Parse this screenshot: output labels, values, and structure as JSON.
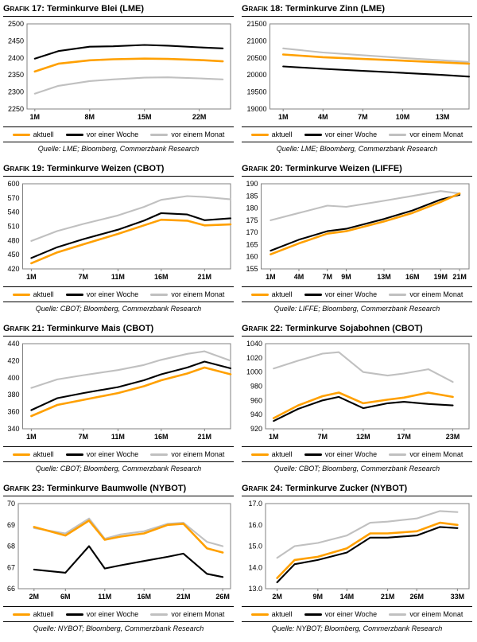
{
  "grid": false,
  "legend_position": "bottom",
  "chart_data": [
    {
      "title_prefix": "Grafik 17:",
      "title": "Terminkurve Blei (LME)",
      "source": "Quelle: LME; Bloomberg, Commerzbank Research",
      "type": "line",
      "xlim": [
        0,
        26
      ],
      "ylim": [
        2250,
        2500
      ],
      "yticks": [
        2250,
        2300,
        2350,
        2400,
        2450,
        2500
      ],
      "ytick_decimals": 0,
      "xticks": [
        {
          "v": 1,
          "label": "1M"
        },
        {
          "v": 8,
          "label": "8M"
        },
        {
          "v": 15,
          "label": "15M"
        },
        {
          "v": 22,
          "label": "22M"
        }
      ],
      "x": [
        1,
        4,
        8,
        11,
        15,
        18,
        22,
        25
      ],
      "series": [
        {
          "name": "aktuell",
          "color": "#FFA000",
          "values": [
            2360,
            2383,
            2393,
            2396,
            2398,
            2397,
            2394,
            2390
          ]
        },
        {
          "name": "vor einer Woche",
          "color": "#000000",
          "values": [
            2398,
            2420,
            2433,
            2434,
            2438,
            2436,
            2431,
            2428
          ]
        },
        {
          "name": "vor einem Monat",
          "color": "#C0C0C0",
          "values": [
            2295,
            2318,
            2332,
            2337,
            2342,
            2343,
            2340,
            2337
          ]
        }
      ]
    },
    {
      "title_prefix": "Grafik 18:",
      "title": "Terminkurve Zinn (LME)",
      "source": "Quelle: LME; Bloomberg, Commerzbank Research",
      "type": "line",
      "xlim": [
        0,
        15
      ],
      "ylim": [
        19000,
        21500
      ],
      "yticks": [
        19000,
        19500,
        20000,
        20500,
        21000,
        21500
      ],
      "ytick_decimals": 0,
      "xticks": [
        {
          "v": 1,
          "label": "1M"
        },
        {
          "v": 4,
          "label": "4M"
        },
        {
          "v": 7,
          "label": "7M"
        },
        {
          "v": 10,
          "label": "10M"
        },
        {
          "v": 13,
          "label": "13M"
        }
      ],
      "x": [
        1,
        4,
        7,
        10,
        13,
        15
      ],
      "series": [
        {
          "name": "aktuell",
          "color": "#FFA000",
          "values": [
            20600,
            20520,
            20470,
            20420,
            20370,
            20330
          ]
        },
        {
          "name": "vor einer Woche",
          "color": "#000000",
          "values": [
            20250,
            20180,
            20120,
            20060,
            20000,
            19950
          ]
        },
        {
          "name": "vor einem Monat",
          "color": "#C0C0C0",
          "values": [
            20780,
            20660,
            20580,
            20500,
            20430,
            20380
          ]
        }
      ]
    },
    {
      "title_prefix": "Grafik 19:",
      "title": "Terminkurve Weizen (CBOT)",
      "source": "Quelle: CBOT; Bloomberg, Commerzbank Research",
      "type": "line",
      "xlim": [
        0,
        24
      ],
      "ylim": [
        420,
        600
      ],
      "yticks": [
        420,
        450,
        480,
        510,
        540,
        570,
        600
      ],
      "ytick_decimals": 0,
      "xticks": [
        {
          "v": 1,
          "label": "1M"
        },
        {
          "v": 7,
          "label": "7M"
        },
        {
          "v": 11,
          "label": "11M"
        },
        {
          "v": 16,
          "label": "16M"
        },
        {
          "v": 21,
          "label": "21M"
        }
      ],
      "x": [
        1,
        4,
        7,
        11,
        14,
        16,
        19,
        21,
        24
      ],
      "series": [
        {
          "name": "aktuell",
          "color": "#FFA000",
          "values": [
            432,
            455,
            472,
            494,
            512,
            524,
            522,
            512,
            514
          ]
        },
        {
          "name": "vor einer Woche",
          "color": "#000000",
          "values": [
            443,
            466,
            483,
            503,
            522,
            538,
            535,
            523,
            527
          ]
        },
        {
          "name": "vor einem Monat",
          "color": "#C0C0C0",
          "values": [
            479,
            500,
            515,
            533,
            551,
            566,
            574,
            572,
            567
          ]
        }
      ]
    },
    {
      "title_prefix": "Grafik 20:",
      "title": "Terminkurve Weizen (LIFFE)",
      "source": "Quelle: LIFFE; Bloomberg, Commerzbank Research",
      "type": "line",
      "xlim": [
        0,
        22
      ],
      "ylim": [
        155,
        190
      ],
      "yticks": [
        155,
        160,
        165,
        170,
        175,
        180,
        185,
        190
      ],
      "ytick_decimals": 0,
      "xticks": [
        {
          "v": 1,
          "label": "1M"
        },
        {
          "v": 4,
          "label": "4M"
        },
        {
          "v": 7,
          "label": "7M"
        },
        {
          "v": 9,
          "label": "9M"
        },
        {
          "v": 13,
          "label": "13M"
        },
        {
          "v": 16,
          "label": "16M"
        },
        {
          "v": 19,
          "label": "19M"
        },
        {
          "v": 21,
          "label": "21M"
        }
      ],
      "x": [
        1,
        4,
        7,
        9,
        13,
        16,
        19,
        21
      ],
      "series": [
        {
          "name": "aktuell",
          "color": "#FFA000",
          "values": [
            161,
            165.5,
            169.5,
            170.5,
            174.5,
            178,
            182.5,
            186
          ]
        },
        {
          "name": "vor einer Woche",
          "color": "#000000",
          "values": [
            162.5,
            167,
            170.5,
            171.5,
            175.5,
            179,
            183.5,
            185.5
          ]
        },
        {
          "name": "vor einem Monat",
          "color": "#C0C0C0",
          "values": [
            175,
            178,
            181,
            180.5,
            183,
            185,
            187,
            186
          ]
        }
      ]
    },
    {
      "title_prefix": "Grafik 21:",
      "title": "Terminkurve Mais (CBOT)",
      "source": "Quelle: CBOT; Bloomberg, Commerzbank Research",
      "type": "line",
      "xlim": [
        0,
        24
      ],
      "ylim": [
        340,
        440
      ],
      "yticks": [
        340,
        360,
        380,
        400,
        420,
        440
      ],
      "ytick_decimals": 0,
      "xticks": [
        {
          "v": 1,
          "label": "1M"
        },
        {
          "v": 7,
          "label": "7M"
        },
        {
          "v": 11,
          "label": "11M"
        },
        {
          "v": 16,
          "label": "16M"
        },
        {
          "v": 21,
          "label": "21M"
        }
      ],
      "x": [
        1,
        4,
        7,
        11,
        14,
        16,
        19,
        21,
        24
      ],
      "series": [
        {
          "name": "aktuell",
          "color": "#FFA000",
          "values": [
            355,
            368,
            374,
            382,
            390,
            397,
            405,
            412,
            404
          ]
        },
        {
          "name": "vor einer Woche",
          "color": "#000000",
          "values": [
            362,
            376,
            382,
            389,
            397,
            404,
            412,
            419,
            411
          ]
        },
        {
          "name": "vor einem Monat",
          "color": "#C0C0C0",
          "values": [
            388,
            398,
            403,
            409,
            415,
            421,
            428,
            431,
            420
          ]
        }
      ]
    },
    {
      "title_prefix": "Grafik 22:",
      "title": "Terminkurve Sojabohnen (CBOT)",
      "source": "Quelle: CBOT; Bloomberg, Commerzbank Research",
      "type": "line",
      "xlim": [
        0,
        25
      ],
      "ylim": [
        920,
        1040
      ],
      "yticks": [
        920,
        940,
        960,
        980,
        1000,
        1020,
        1040
      ],
      "ytick_decimals": 0,
      "xticks": [
        {
          "v": 1,
          "label": "1M"
        },
        {
          "v": 7,
          "label": "7M"
        },
        {
          "v": 12,
          "label": "12M"
        },
        {
          "v": 17,
          "label": "17M"
        },
        {
          "v": 23,
          "label": "23M"
        }
      ],
      "x": [
        1,
        4,
        7,
        9,
        12,
        15,
        17,
        20,
        23
      ],
      "series": [
        {
          "name": "aktuell",
          "color": "#FFA000",
          "values": [
            935,
            953,
            966,
            971,
            956,
            961,
            964,
            971,
            965
          ]
        },
        {
          "name": "vor einer Woche",
          "color": "#000000",
          "values": [
            931,
            948,
            960,
            965,
            949,
            956,
            958,
            955,
            953
          ]
        },
        {
          "name": "vor einem Monat",
          "color": "#C0C0C0",
          "values": [
            1005,
            1016,
            1026,
            1028,
            1000,
            995,
            998,
            1004,
            986
          ]
        }
      ]
    },
    {
      "title_prefix": "Grafik 23:",
      "title": "Terminkurve Baumwolle (NYBOT)",
      "source": "Quelle: NYBOT; Bloomberg, Commerzbank Research",
      "type": "line",
      "xlim": [
        0,
        27
      ],
      "ylim": [
        66,
        70
      ],
      "yticks": [
        66,
        67,
        68,
        69,
        70
      ],
      "ytick_decimals": 0,
      "xticks": [
        {
          "v": 2,
          "label": "2M"
        },
        {
          "v": 6,
          "label": "6M"
        },
        {
          "v": 11,
          "label": "11M"
        },
        {
          "v": 16,
          "label": "16M"
        },
        {
          "v": 21,
          "label": "21M"
        },
        {
          "v": 26,
          "label": "26M"
        }
      ],
      "x": [
        2,
        6,
        9,
        11,
        13,
        16,
        19,
        21,
        24,
        26
      ],
      "series": [
        {
          "name": "aktuell",
          "color": "#FFA000",
          "values": [
            68.9,
            68.5,
            69.2,
            68.3,
            68.45,
            68.6,
            69.0,
            69.05,
            67.9,
            67.7
          ]
        },
        {
          "name": "vor einer Woche",
          "color": "#000000",
          "values": [
            66.9,
            66.75,
            68.0,
            66.95,
            67.1,
            67.3,
            67.5,
            67.65,
            66.7,
            66.55
          ]
        },
        {
          "name": "vor einem Monat",
          "color": "#C0C0C0",
          "values": [
            68.85,
            68.6,
            69.3,
            68.35,
            68.55,
            68.7,
            69.05,
            69.1,
            68.2,
            68.0
          ]
        }
      ]
    },
    {
      "title_prefix": "Grafik 24:",
      "title": "Terminkurve Zucker (NYBOT)",
      "source": "Quelle: NYBOT; Bloomberg, Commerzbank Research",
      "type": "line",
      "xlim": [
        0,
        35
      ],
      "ylim": [
        13.0,
        17.0
      ],
      "yticks": [
        13.0,
        14.0,
        15.0,
        16.0,
        17.0
      ],
      "ytick_decimals": 1,
      "xticks": [
        {
          "v": 2,
          "label": "2M"
        },
        {
          "v": 9,
          "label": "9M"
        },
        {
          "v": 14,
          "label": "14M"
        },
        {
          "v": 21,
          "label": "21M"
        },
        {
          "v": 26,
          "label": "26M"
        },
        {
          "v": 33,
          "label": "33M"
        }
      ],
      "x": [
        2,
        5,
        9,
        14,
        18,
        21,
        26,
        30,
        33
      ],
      "series": [
        {
          "name": "aktuell",
          "color": "#FFA000",
          "values": [
            13.5,
            14.35,
            14.5,
            14.9,
            15.6,
            15.6,
            15.7,
            16.1,
            16.0
          ]
        },
        {
          "name": "vor einer Woche",
          "color": "#000000",
          "values": [
            13.3,
            14.15,
            14.35,
            14.7,
            15.4,
            15.4,
            15.5,
            15.9,
            15.85
          ]
        },
        {
          "name": "vor einem Monat",
          "color": "#C0C0C0",
          "values": [
            14.45,
            15.0,
            15.15,
            15.5,
            16.1,
            16.15,
            16.3,
            16.65,
            16.6
          ]
        }
      ]
    }
  ]
}
